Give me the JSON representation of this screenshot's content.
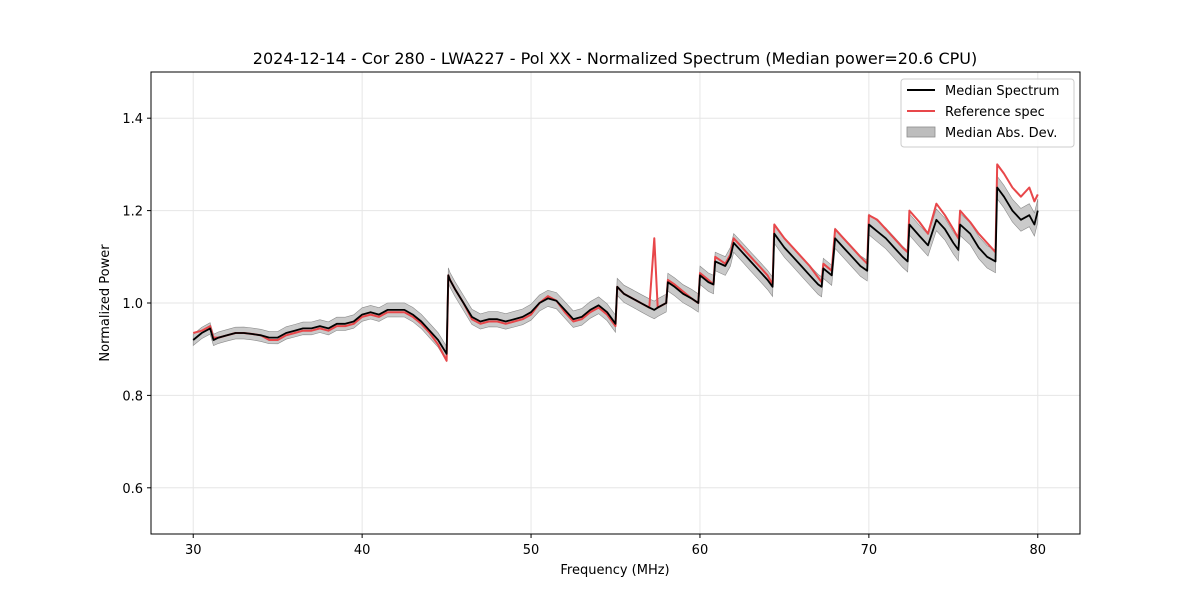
{
  "chart_data": {
    "type": "line",
    "title": "2024-12-14 - Cor 280 - LWA227 - Pol XX - Normalized Spectrum (Median power=20.6 CPU)",
    "xlabel": "Frequency (MHz)",
    "ylabel": "Normalized Power",
    "xlim": [
      27.5,
      82.5
    ],
    "ylim": [
      0.5,
      1.5
    ],
    "xticks": [
      30,
      40,
      50,
      60,
      70,
      80
    ],
    "yticks": [
      0.6,
      0.8,
      1.0,
      1.2,
      1.4
    ],
    "xtick_labels": [
      "30",
      "40",
      "50",
      "60",
      "70",
      "80"
    ],
    "ytick_labels": [
      "0.6",
      "0.8",
      "1.0",
      "1.2",
      "1.4"
    ],
    "grid": true,
    "legend_position": "top-right",
    "legend": [
      "Median Spectrum",
      "Reference spec",
      "Median Abs. Dev."
    ],
    "colors": {
      "median": "#000000",
      "reference": "#e8474a",
      "mad_fill": "#bdbdbd",
      "mad_edge": "#8c8c8c"
    },
    "series": [
      {
        "name": "Median Spectrum",
        "x": [
          30.0,
          30.5,
          31.0,
          31.2,
          31.5,
          32.0,
          32.5,
          33.0,
          33.5,
          34.0,
          34.5,
          35.0,
          35.5,
          36.0,
          36.5,
          37.0,
          37.5,
          38.0,
          38.5,
          39.0,
          39.5,
          40.0,
          40.5,
          41.0,
          41.5,
          42.0,
          42.5,
          43.0,
          43.5,
          44.0,
          44.5,
          45.0,
          45.1,
          45.2,
          45.5,
          46.0,
          46.5,
          47.0,
          47.5,
          48.0,
          48.5,
          49.0,
          49.5,
          50.0,
          50.5,
          51.0,
          51.5,
          52.0,
          52.5,
          53.0,
          53.5,
          54.0,
          54.5,
          55.0,
          55.1,
          55.5,
          56.0,
          56.5,
          57.0,
          57.3,
          57.5,
          58.0,
          58.1,
          58.5,
          59.0,
          59.5,
          59.9,
          60.0,
          60.5,
          60.8,
          60.9,
          61.5,
          61.8,
          62.0,
          62.5,
          63.0,
          63.5,
          64.0,
          64.3,
          64.4,
          65.0,
          65.5,
          66.0,
          66.5,
          67.0,
          67.2,
          67.3,
          67.8,
          68.0,
          68.5,
          69.0,
          69.5,
          69.9,
          70.0,
          70.5,
          71.0,
          71.5,
          72.0,
          72.3,
          72.4,
          73.0,
          73.5,
          74.0,
          74.5,
          75.0,
          75.3,
          75.4,
          76.0,
          76.5,
          77.0,
          77.5,
          77.6,
          78.0,
          78.5,
          79.0,
          79.5,
          79.8,
          80.0
        ],
        "values": [
          0.92,
          0.935,
          0.945,
          0.92,
          0.925,
          0.93,
          0.935,
          0.935,
          0.933,
          0.93,
          0.925,
          0.925,
          0.935,
          0.94,
          0.945,
          0.945,
          0.95,
          0.945,
          0.955,
          0.955,
          0.96,
          0.975,
          0.98,
          0.975,
          0.985,
          0.985,
          0.985,
          0.975,
          0.96,
          0.94,
          0.92,
          0.89,
          1.06,
          1.05,
          1.03,
          1.0,
          0.97,
          0.96,
          0.965,
          0.965,
          0.96,
          0.965,
          0.97,
          0.98,
          1.0,
          1.01,
          1.005,
          0.985,
          0.965,
          0.97,
          0.985,
          0.995,
          0.98,
          0.955,
          1.035,
          1.02,
          1.01,
          1.0,
          0.99,
          0.985,
          0.99,
          1.0,
          1.045,
          1.035,
          1.02,
          1.01,
          1.0,
          1.06,
          1.045,
          1.04,
          1.09,
          1.08,
          1.1,
          1.13,
          1.11,
          1.09,
          1.07,
          1.05,
          1.035,
          1.15,
          1.12,
          1.1,
          1.08,
          1.06,
          1.04,
          1.035,
          1.075,
          1.06,
          1.14,
          1.12,
          1.1,
          1.08,
          1.07,
          1.17,
          1.155,
          1.14,
          1.12,
          1.1,
          1.09,
          1.17,
          1.145,
          1.125,
          1.18,
          1.16,
          1.13,
          1.115,
          1.17,
          1.15,
          1.12,
          1.1,
          1.09,
          1.25,
          1.23,
          1.2,
          1.18,
          1.19,
          1.17,
          1.2
        ]
      },
      {
        "name": "Reference spec",
        "x": [
          30.0,
          30.5,
          31.0,
          31.2,
          31.5,
          32.0,
          32.5,
          33.0,
          33.5,
          34.0,
          34.5,
          35.0,
          35.5,
          36.0,
          36.5,
          37.0,
          37.5,
          38.0,
          38.5,
          39.0,
          39.5,
          40.0,
          40.5,
          41.0,
          41.5,
          42.0,
          42.5,
          43.0,
          43.5,
          44.0,
          44.5,
          45.0,
          45.1,
          45.2,
          45.5,
          46.0,
          46.5,
          47.0,
          47.5,
          48.0,
          48.5,
          49.0,
          49.5,
          50.0,
          50.5,
          51.0,
          51.5,
          52.0,
          52.5,
          53.0,
          53.5,
          54.0,
          54.5,
          55.0,
          55.1,
          55.5,
          56.0,
          56.5,
          57.0,
          57.3,
          57.5,
          58.0,
          58.1,
          58.5,
          59.0,
          59.5,
          59.9,
          60.0,
          60.5,
          60.8,
          60.9,
          61.5,
          61.8,
          62.0,
          62.5,
          63.0,
          63.5,
          64.0,
          64.3,
          64.4,
          65.0,
          65.5,
          66.0,
          66.5,
          67.0,
          67.2,
          67.3,
          67.8,
          68.0,
          68.5,
          69.0,
          69.5,
          69.9,
          70.0,
          70.5,
          71.0,
          71.5,
          72.0,
          72.3,
          72.4,
          73.0,
          73.5,
          74.0,
          74.5,
          75.0,
          75.3,
          75.4,
          76.0,
          76.5,
          77.0,
          77.5,
          77.6,
          78.0,
          78.5,
          79.0,
          79.5,
          79.8,
          80.0
        ],
        "values": [
          0.935,
          0.94,
          0.95,
          0.925,
          0.925,
          0.93,
          0.935,
          0.935,
          0.933,
          0.93,
          0.92,
          0.92,
          0.93,
          0.935,
          0.94,
          0.94,
          0.945,
          0.94,
          0.95,
          0.95,
          0.955,
          0.97,
          0.975,
          0.97,
          0.98,
          0.98,
          0.98,
          0.97,
          0.955,
          0.935,
          0.91,
          0.875,
          1.06,
          1.05,
          1.03,
          1.0,
          0.965,
          0.955,
          0.96,
          0.96,
          0.955,
          0.96,
          0.965,
          0.975,
          1.0,
          1.015,
          1.005,
          0.98,
          0.96,
          0.965,
          0.98,
          0.99,
          0.975,
          0.95,
          1.035,
          1.02,
          1.01,
          1.0,
          0.99,
          1.14,
          0.99,
          1.0,
          1.05,
          1.04,
          1.025,
          1.01,
          1.0,
          1.065,
          1.05,
          1.04,
          1.1,
          1.085,
          1.105,
          1.14,
          1.12,
          1.1,
          1.08,
          1.06,
          1.04,
          1.17,
          1.14,
          1.12,
          1.1,
          1.08,
          1.055,
          1.045,
          1.085,
          1.07,
          1.16,
          1.14,
          1.12,
          1.1,
          1.085,
          1.19,
          1.18,
          1.16,
          1.14,
          1.12,
          1.11,
          1.2,
          1.175,
          1.15,
          1.215,
          1.19,
          1.16,
          1.14,
          1.2,
          1.175,
          1.15,
          1.13,
          1.11,
          1.3,
          1.28,
          1.25,
          1.23,
          1.25,
          1.22,
          1.235
        ]
      }
    ]
  }
}
